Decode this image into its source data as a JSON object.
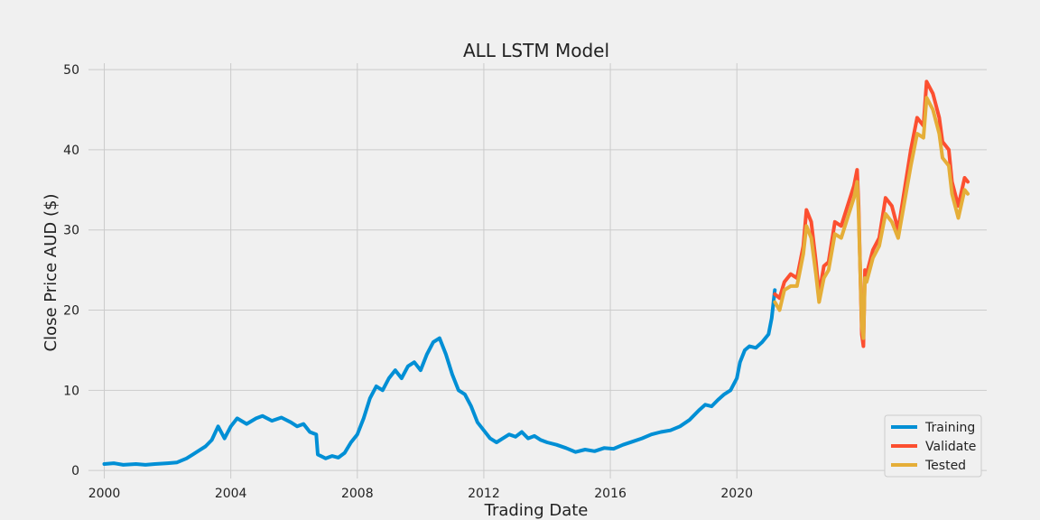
{
  "chart_data": {
    "type": "line",
    "title": "ALL LSTM Model",
    "xlabel": "Trading Date",
    "ylabel": "Close Price AUD ($)",
    "xlim": [
      1999.5,
      2027.9
    ],
    "ylim": [
      -1,
      50.8
    ],
    "xticks": [
      2000,
      2004,
      2008,
      2012,
      2016,
      2020
    ],
    "xtick_labels": [
      "2000",
      "2004",
      "2008",
      "2012",
      "2016",
      "2020"
    ],
    "yticks": [
      0,
      10,
      20,
      30,
      40,
      50
    ],
    "ytick_labels": [
      "0",
      "10",
      "20",
      "30",
      "40",
      "50"
    ],
    "grid": true,
    "legend_position": "bottom-right",
    "series": [
      {
        "name": "Training",
        "color": "#008fd5",
        "x": [
          2000.0,
          2000.3,
          2000.6,
          2001.0,
          2001.3,
          2001.6,
          2002.0,
          2002.3,
          2002.6,
          2002.8,
          2003.0,
          2003.2,
          2003.4,
          2003.6,
          2003.8,
          2004.0,
          2004.2,
          2004.5,
          2004.8,
          2005.0,
          2005.3,
          2005.6,
          2005.9,
          2006.1,
          2006.3,
          2006.5,
          2006.7,
          2006.75,
          2007.0,
          2007.2,
          2007.4,
          2007.6,
          2007.8,
          2008.0,
          2008.2,
          2008.4,
          2008.6,
          2008.8,
          2009.0,
          2009.2,
          2009.4,
          2009.6,
          2009.8,
          2010.0,
          2010.2,
          2010.4,
          2010.6,
          2010.8,
          2011.0,
          2011.2,
          2011.4,
          2011.6,
          2011.8,
          2012.0,
          2012.2,
          2012.4,
          2012.6,
          2012.8,
          2013.0,
          2013.2,
          2013.4,
          2013.6,
          2013.8,
          2014.0,
          2014.3,
          2014.6,
          2014.9,
          2015.2,
          2015.5,
          2015.8,
          2016.1,
          2016.4,
          2016.7,
          2017.0,
          2017.3,
          2017.6,
          2017.9,
          2018.2,
          2018.5,
          2018.8,
          2019.0,
          2019.2,
          2019.4,
          2019.6,
          2019.8,
          2020.0,
          2020.1,
          2020.25,
          2020.4,
          2020.6,
          2020.8,
          2021.0,
          2021.1,
          2021.2
        ],
        "y": [
          0.8,
          0.9,
          0.7,
          0.8,
          0.7,
          0.8,
          0.9,
          1.0,
          1.5,
          2.0,
          2.5,
          3.0,
          3.8,
          5.5,
          4.0,
          5.5,
          6.5,
          5.8,
          6.5,
          6.8,
          6.2,
          6.6,
          6.0,
          5.5,
          5.8,
          4.8,
          4.5,
          2.0,
          1.5,
          1.8,
          1.6,
          2.2,
          3.5,
          4.5,
          6.5,
          9.0,
          10.5,
          10.0,
          11.5,
          12.5,
          11.5,
          13.0,
          13.5,
          12.5,
          14.5,
          16.0,
          16.5,
          14.5,
          12.0,
          10.0,
          9.5,
          8.0,
          6.0,
          5.0,
          4.0,
          3.5,
          4.0,
          4.5,
          4.2,
          4.8,
          4.0,
          4.3,
          3.8,
          3.5,
          3.2,
          2.8,
          2.3,
          2.6,
          2.4,
          2.8,
          2.7,
          3.2,
          3.6,
          4.0,
          4.5,
          4.8,
          5.0,
          5.5,
          6.3,
          7.5,
          8.2,
          8.0,
          8.8,
          9.5,
          10.0,
          11.5,
          13.5,
          15.0,
          15.5,
          15.3,
          16.0,
          17.0,
          19.0,
          22.5
        ]
      },
      {
        "name": "Validate",
        "color": "#fc4f30",
        "x": [
          2021.2,
          2021.35,
          2021.5,
          2021.7,
          2021.9,
          2022.1,
          2022.2,
          2022.35,
          2022.5,
          2022.6,
          2022.75,
          2022.9,
          2023.1,
          2023.3,
          2023.5,
          2023.7,
          2023.8,
          2023.85,
          2023.95,
          2024.0,
          2024.05,
          2024.1,
          2024.3,
          2024.5,
          2024.7,
          2024.9,
          2025.1,
          2025.3,
          2025.5,
          2025.7,
          2025.9,
          2026.0,
          2026.2,
          2026.4,
          2026.5,
          2026.7,
          2026.8,
          2027.0,
          2027.2,
          2027.3
        ],
        "y": [
          22.0,
          21.5,
          23.5,
          24.5,
          24.0,
          28.0,
          32.5,
          31.0,
          26.0,
          22.0,
          25.5,
          26.0,
          31.0,
          30.5,
          33.0,
          35.5,
          37.5,
          33.0,
          17.0,
          15.5,
          25.0,
          24.5,
          27.5,
          29.0,
          34.0,
          33.0,
          30.0,
          35.0,
          40.0,
          44.0,
          43.0,
          48.5,
          47.0,
          44.0,
          41.0,
          40.0,
          36.0,
          33.0,
          36.5,
          36.0
        ]
      },
      {
        "name": "Tested",
        "color": "#e5ae38",
        "x": [
          2021.2,
          2021.35,
          2021.5,
          2021.7,
          2021.9,
          2022.1,
          2022.2,
          2022.35,
          2022.5,
          2022.6,
          2022.75,
          2022.9,
          2023.1,
          2023.3,
          2023.5,
          2023.7,
          2023.8,
          2023.85,
          2023.95,
          2024.0,
          2024.05,
          2024.1,
          2024.3,
          2024.5,
          2024.7,
          2024.9,
          2025.1,
          2025.3,
          2025.5,
          2025.7,
          2025.9,
          2026.0,
          2026.2,
          2026.4,
          2026.5,
          2026.7,
          2026.8,
          2027.0,
          2027.2,
          2027.3
        ],
        "y": [
          21.0,
          20.0,
          22.5,
          23.0,
          23.0,
          27.0,
          30.5,
          29.0,
          24.5,
          21.0,
          24.0,
          25.0,
          29.5,
          29.0,
          31.5,
          34.0,
          36.0,
          32.0,
          18.0,
          16.5,
          24.0,
          23.5,
          26.5,
          28.0,
          32.0,
          31.0,
          29.0,
          33.5,
          38.0,
          42.0,
          41.5,
          46.5,
          45.0,
          42.0,
          39.0,
          38.0,
          34.5,
          31.5,
          35.0,
          34.5
        ]
      }
    ]
  }
}
